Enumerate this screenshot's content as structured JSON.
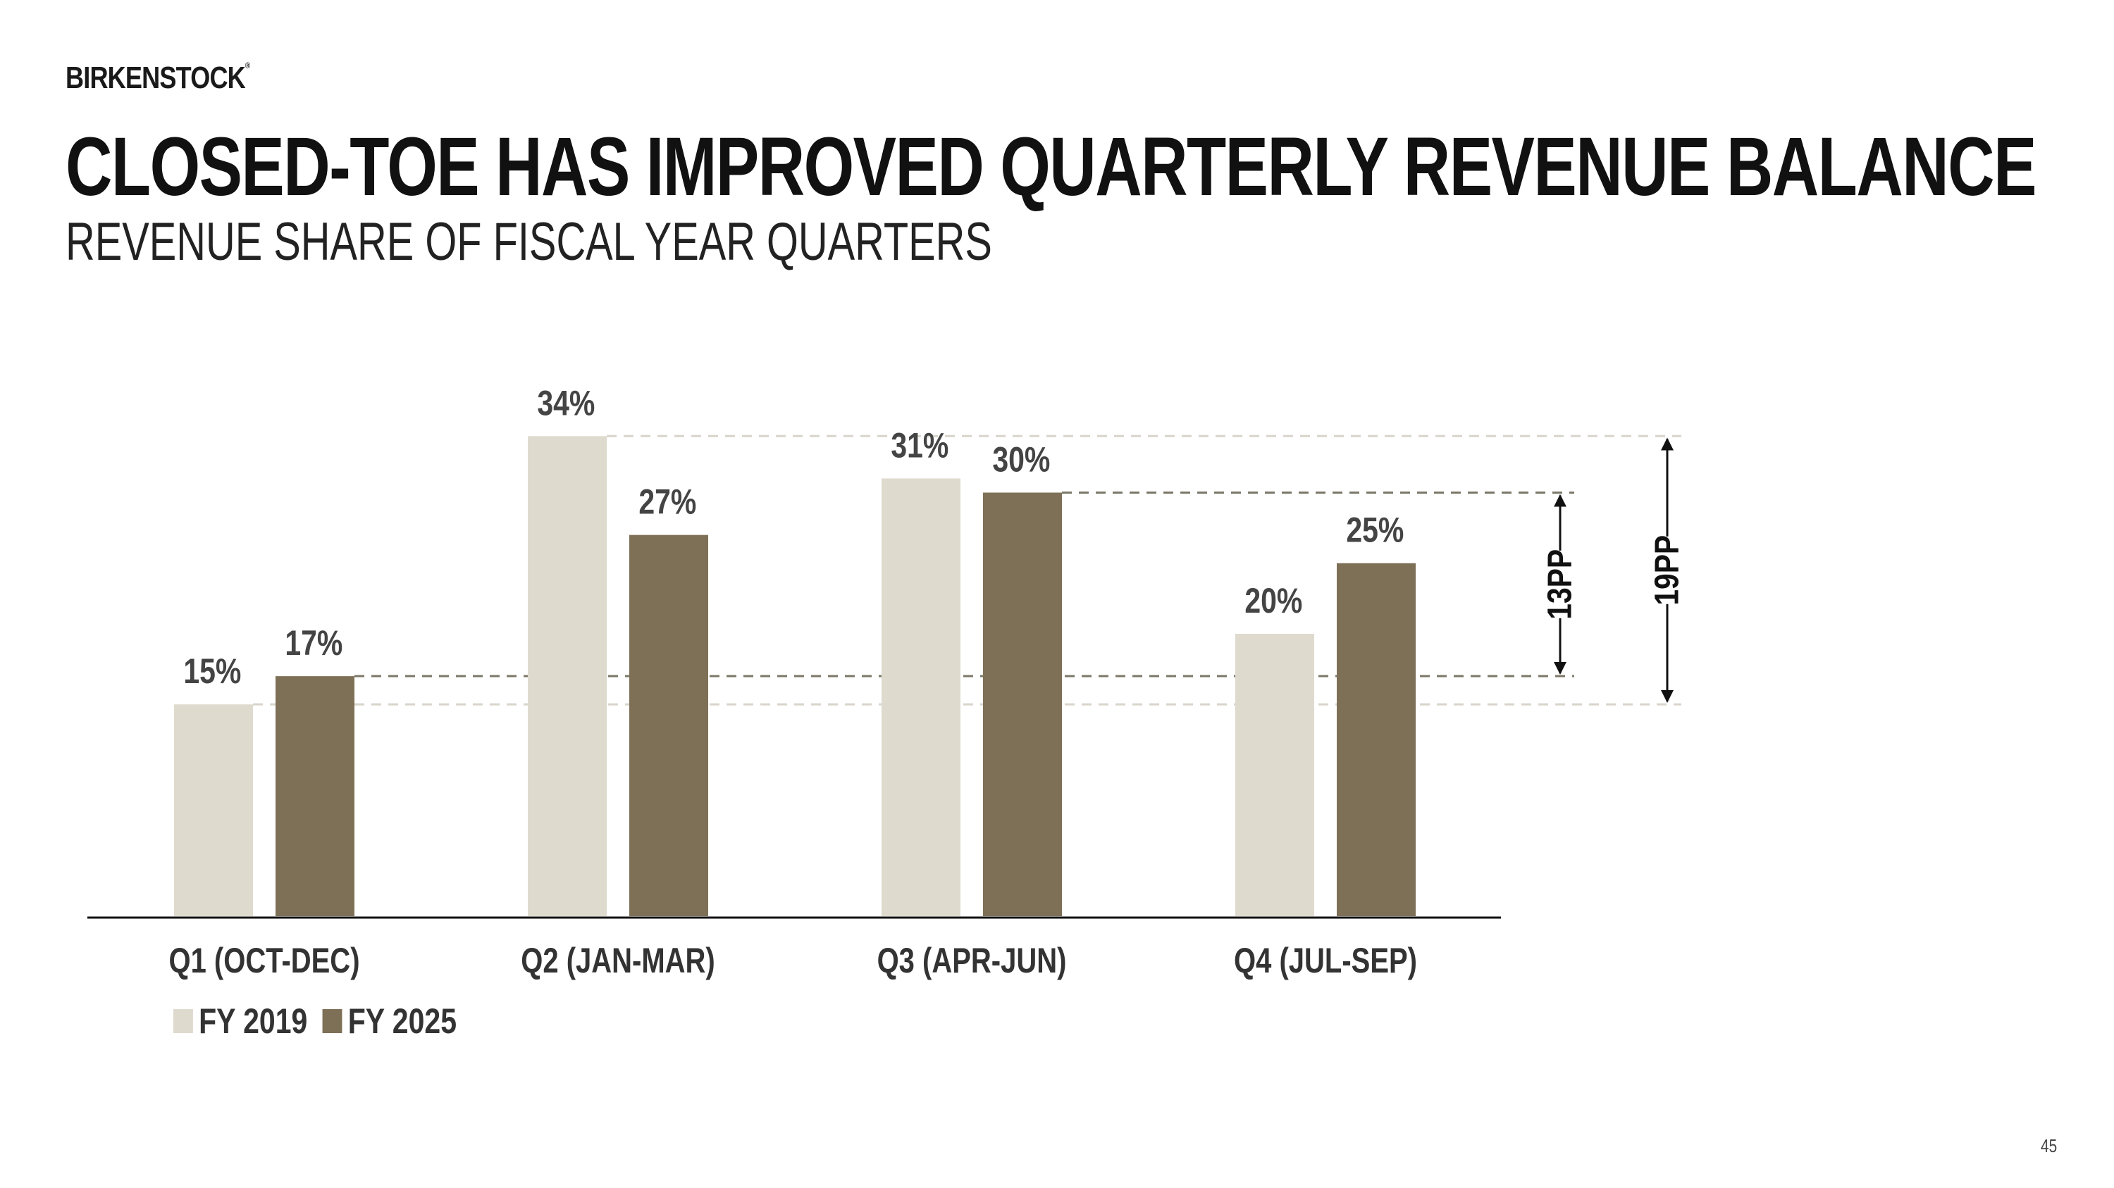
{
  "brand": {
    "name": "BIRKENSTOCK",
    "mark": "®"
  },
  "header": {
    "title": "CLOSED-TOE HAS IMPROVED QUARTERLY REVENUE BALANCE",
    "subtitle": "REVENUE SHARE OF FISCAL YEAR QUARTERS"
  },
  "page_number": "45",
  "colors": {
    "fy2019": "#dedace",
    "fy2025": "#7e7056",
    "axis": "#111111",
    "ref_light": "#d8d5cb",
    "ref_dark": "#7b7868"
  },
  "chart_data": {
    "type": "bar",
    "title": "REVENUE SHARE OF FISCAL YEAR QUARTERS",
    "categories": [
      "Q1 (OCT-DEC)",
      "Q2 (JAN-MAR)",
      "Q3 (APR-JUN)",
      "Q4 (JUL-SEP)"
    ],
    "series": [
      {
        "name": "FY 2019",
        "values": [
          15,
          34,
          31,
          20
        ],
        "labels": [
          "15%",
          "34%",
          "31%",
          "20%"
        ]
      },
      {
        "name": "FY 2025",
        "values": [
          17,
          27,
          30,
          25
        ],
        "labels": [
          "17%",
          "27%",
          "30%",
          "25%"
        ]
      }
    ],
    "ylim": [
      0,
      34
    ],
    "xlabel": "",
    "ylabel": "",
    "grid": false,
    "legend": "bottom-left",
    "annotations": [
      {
        "label": "13PP",
        "series": "FY 2025",
        "from": 17,
        "to": 30
      },
      {
        "label": "19PP",
        "series": "FY 2019",
        "from": 15,
        "to": 34
      }
    ]
  }
}
